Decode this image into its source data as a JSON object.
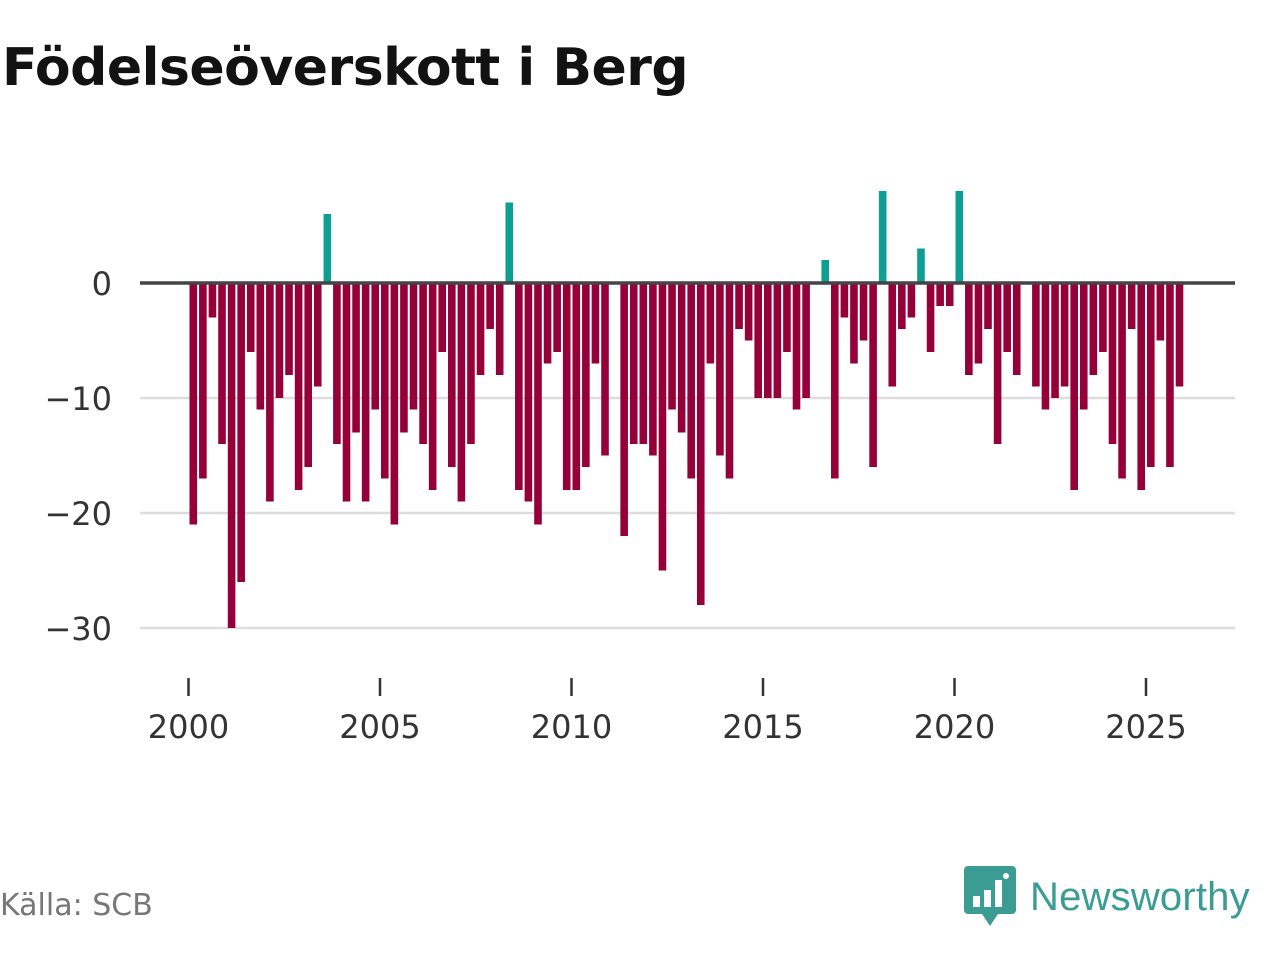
{
  "header": {
    "title": "Födelseöverskott i Berg"
  },
  "footer": {
    "source": "Källa: SCB",
    "brand": "Newsworthy",
    "brand_icon": "newsworthy-logo-icon"
  },
  "colors": {
    "positive": "#0f9e94",
    "negative": "#960039",
    "zero_line": "#444444",
    "grid": "#dddddd",
    "text": "#333333",
    "brand": "#3a9c92"
  },
  "chart_data": {
    "type": "bar",
    "title": "Födelseöverskott i Berg",
    "xlabel": "",
    "ylabel": "",
    "frequency": "quarterly",
    "start": "2000-Q1",
    "ylim": [
      -34,
      10
    ],
    "yticks": [
      0,
      -10,
      -20,
      -30
    ],
    "ytick_labels": [
      "0",
      "−10",
      "−20",
      "−30"
    ],
    "xticks": [
      2000,
      2005,
      2010,
      2015,
      2020,
      2025
    ],
    "xtick_labels": [
      "2000",
      "2005",
      "2010",
      "2015",
      "2020",
      "2025"
    ],
    "values": [
      -21,
      -17,
      -3,
      -14,
      -30,
      -26,
      -6,
      -11,
      -19,
      -10,
      -8,
      -18,
      -16,
      -9,
      6,
      -14,
      -19,
      -13,
      -19,
      -11,
      -17,
      -21,
      -13,
      -11,
      -14,
      -18,
      -6,
      -16,
      -19,
      -14,
      -8,
      -4,
      -8,
      7,
      -18,
      -19,
      -21,
      -7,
      -6,
      -18,
      -18,
      -16,
      -7,
      -15,
      0,
      -22,
      -14,
      -14,
      -15,
      -25,
      -11,
      -13,
      -17,
      -28,
      -7,
      -15,
      -17,
      -4,
      -5,
      -10,
      -10,
      -10,
      -6,
      -11,
      -10,
      0,
      2,
      -17,
      -3,
      -7,
      -5,
      -16,
      8,
      -9,
      -4,
      -3,
      3,
      -6,
      -2,
      -2,
      8,
      -8,
      -7,
      -4,
      -14,
      -6,
      -8,
      0,
      -9,
      -11,
      -10,
      -9,
      -18,
      -11,
      -8,
      -6,
      -14,
      -17,
      -4,
      -18,
      -16,
      -5,
      -16,
      -9
    ]
  }
}
